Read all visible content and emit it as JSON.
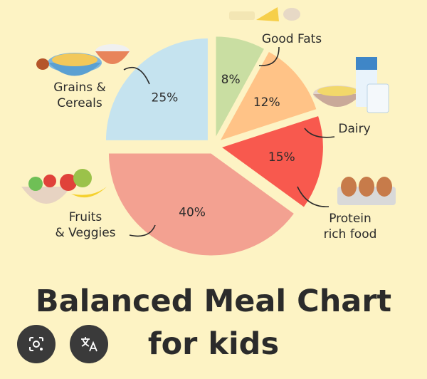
{
  "chart_data": {
    "type": "pie",
    "categories": [
      "Good Fats",
      "Dairy",
      "Protein rich food",
      "Fruits & Veggies",
      "Grains & Cereals"
    ],
    "values": [
      8,
      12,
      15,
      40,
      25
    ],
    "value_labels": [
      "8%",
      "12%",
      "15%",
      "40%",
      "25%"
    ],
    "label_lines": [
      [
        "Good Fats"
      ],
      [
        "Dairy"
      ],
      [
        "Protein",
        "rich food"
      ],
      [
        "Fruits",
        "& Veggies"
      ],
      [
        "Grains &",
        "Cereals"
      ]
    ],
    "colors": [
      "#c9dea2",
      "#ffc387",
      "#f8594e",
      "#f3a191",
      "#c5e3ef"
    ],
    "legend": "none"
  },
  "title_line1": "Balanced Meal Chart",
  "title_line2": "for kids",
  "overlay": {
    "lens_icon": "google-lens-icon",
    "translate_icon": "translate-icon"
  }
}
